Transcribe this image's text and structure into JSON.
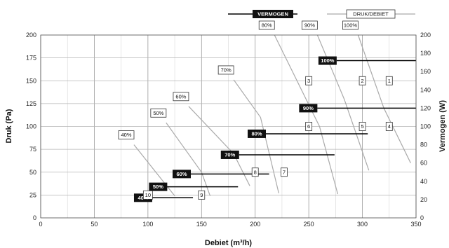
{
  "chart_data": {
    "type": "line",
    "xlabel": "Debiet (m³/h)",
    "ylabel_left": "Druk (Pa)",
    "ylabel_right": "Vermogen (W)",
    "xlim": [
      0,
      350
    ],
    "ylim_left": [
      0,
      200
    ],
    "ylim_right": [
      0,
      200
    ],
    "xticks": [
      "0",
      "50",
      "100",
      "150",
      "200",
      "250",
      "300",
      "350"
    ],
    "yticks_left": [
      "0",
      "25",
      "50",
      "75",
      "100",
      "125",
      "150",
      "175",
      "200"
    ],
    "yticks_right": [
      "0",
      "20",
      "40",
      "60",
      "80",
      "100",
      "120",
      "140",
      "160",
      "180",
      "200"
    ],
    "grid": true,
    "legend": [
      {
        "name": "VERMOGEN",
        "style": "black-line-dark-label",
        "color": "#000000"
      },
      {
        "name": "DRUK/DEBIET",
        "style": "gray-line-boxed-label",
        "color": "#aaaaaa"
      }
    ],
    "druk_series": [
      {
        "name": "40%",
        "points": [
          [
            87,
            80
          ],
          [
            125,
            24
          ]
        ]
      },
      {
        "name": "50%",
        "points": [
          [
            117,
            104
          ],
          [
            150,
            50
          ],
          [
            158,
            24
          ]
        ]
      },
      {
        "name": "60%",
        "points": [
          [
            138,
            122
          ],
          [
            180,
            70
          ],
          [
            195,
            35
          ]
        ]
      },
      {
        "name": "70%",
        "points": [
          [
            180,
            151
          ],
          [
            205,
            110
          ],
          [
            222,
            27
          ]
        ]
      },
      {
        "name": "80%",
        "points": [
          [
            218,
            200
          ],
          [
            260,
            100
          ],
          [
            277,
            26
          ]
        ]
      },
      {
        "name": "90%",
        "points": [
          [
            258,
            200
          ],
          [
            283,
            130
          ],
          [
            306,
            52
          ]
        ]
      },
      {
        "name": "100%",
        "points": [
          [
            296,
            200
          ],
          [
            320,
            120
          ],
          [
            345,
            60
          ]
        ]
      }
    ],
    "vermogen_series": [
      {
        "name": "40%",
        "marker": "10",
        "x_range": [
          104,
          142
        ],
        "value": 22
      },
      {
        "name": "50%",
        "marker": "9",
        "x_range": [
          118,
          184
        ],
        "value": 34
      },
      {
        "name": "60%",
        "marker": "8",
        "x_range": [
          140,
          213
        ],
        "value": 48
      },
      {
        "name": "70%",
        "marker": "7",
        "x_range": [
          185,
          274
        ],
        "value": 69
      },
      {
        "name": "80%",
        "marker": "6",
        "x_range": [
          210,
          305
        ],
        "value": 92
      },
      {
        "name": "90%",
        "marker": "5",
        "x_range": [
          258,
          350
        ],
        "value": 120
      },
      {
        "name": "100%",
        "marker": "4",
        "x_range": [
          276,
          350
        ],
        "value": 172
      }
    ],
    "marker_labels": [
      {
        "text": "1",
        "x": 325,
        "y": 150
      },
      {
        "text": "2",
        "x": 300,
        "y": 150
      },
      {
        "text": "3",
        "x": 250,
        "y": 150
      },
      {
        "text": "4",
        "x": 325,
        "y": 100
      },
      {
        "text": "5",
        "x": 300,
        "y": 100
      },
      {
        "text": "6",
        "x": 250,
        "y": 100
      },
      {
        "text": "7",
        "x": 227,
        "y": 50
      },
      {
        "text": "8",
        "x": 200,
        "y": 50
      },
      {
        "text": "9",
        "x": 150,
        "y": 25
      },
      {
        "text": "10",
        "x": 100,
        "y": 25
      }
    ]
  }
}
